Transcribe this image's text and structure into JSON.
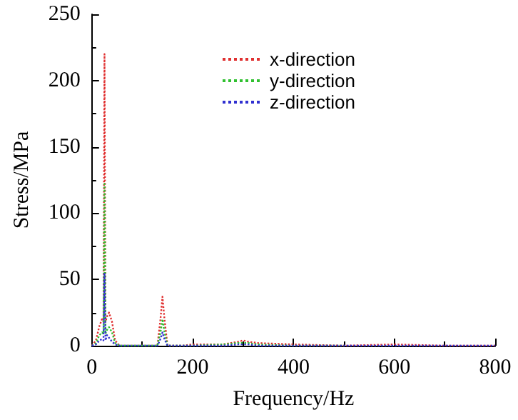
{
  "chart_data": {
    "type": "line",
    "xlabel": "Frequency/Hz",
    "ylabel": "Stress/MPa",
    "xlim": [
      0,
      800
    ],
    "xticks": [
      0,
      200,
      400,
      600,
      800
    ],
    "ylim": [
      0,
      250
    ],
    "yticks": [
      0,
      50,
      100,
      150,
      200,
      250
    ],
    "grid": false,
    "legend": "top",
    "marker": "none",
    "line_style": "dotted",
    "series": [
      {
        "name": "x-direction",
        "color": "#e03030",
        "x": [
          0,
          8,
          15,
          20,
          23,
          25,
          27,
          30,
          34,
          40,
          46,
          55,
          100,
          130,
          136,
          140,
          144,
          150,
          180,
          200,
          260,
          290,
          300,
          310,
          330,
          400,
          500,
          600,
          700,
          800
        ],
        "values": [
          0,
          4,
          15,
          20,
          18,
          220,
          18,
          22,
          25,
          18,
          4,
          0,
          0,
          0,
          20,
          37,
          20,
          0,
          0,
          1,
          1,
          3,
          4,
          3,
          2,
          1,
          0,
          1,
          0,
          0
        ]
      },
      {
        "name": "y-direction",
        "color": "#30c030",
        "x": [
          0,
          8,
          15,
          20,
          23,
          25,
          27,
          30,
          34,
          40,
          46,
          55,
          100,
          130,
          136,
          140,
          144,
          150,
          180,
          200,
          260,
          290,
          300,
          310,
          330,
          400,
          500
        ],
        "values": [
          0,
          2,
          8,
          10,
          9,
          122,
          9,
          12,
          14,
          10,
          2,
          0,
          0,
          0,
          10,
          20,
          10,
          0,
          0,
          0,
          1,
          2,
          2,
          2,
          1,
          0,
          0
        ]
      },
      {
        "name": "z-direction",
        "color": "#3030d0",
        "x": [
          0,
          8,
          15,
          20,
          23,
          25,
          27,
          30,
          34,
          40,
          46,
          55,
          100,
          130,
          136,
          140,
          144,
          150,
          180,
          200,
          260,
          290,
          300,
          310,
          330,
          400,
          500,
          600,
          700,
          800
        ],
        "values": [
          0,
          1,
          4,
          5,
          4,
          55,
          4,
          8,
          6,
          3,
          1,
          0,
          0,
          0,
          5,
          10,
          5,
          0,
          0,
          0,
          0,
          1,
          1,
          1,
          0,
          0,
          0,
          0,
          0,
          0
        ]
      }
    ]
  }
}
